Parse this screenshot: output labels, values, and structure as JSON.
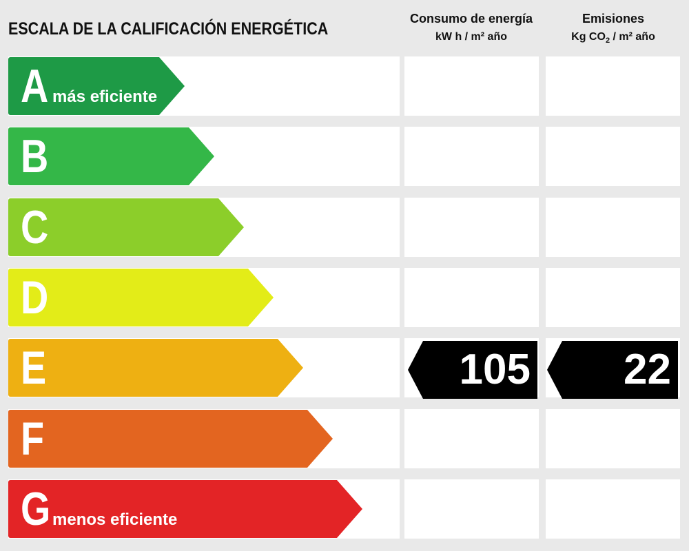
{
  "title": "ESCALA DE LA CALIFICACIÓN ENERGÉTICA",
  "columns": {
    "energy": {
      "title": "Consumo de energía",
      "unit": "kW h / m² año"
    },
    "emissions": {
      "title": "Emisiones",
      "unit_prefix": "Kg CO",
      "unit_sub": "2",
      "unit_suffix": " / m² año"
    }
  },
  "classes": [
    {
      "letter": "A",
      "label": "más eficiente",
      "color": "#1e9a46"
    },
    {
      "letter": "B",
      "label": "",
      "color": "#34b748"
    },
    {
      "letter": "C",
      "label": "",
      "color": "#8cce2a"
    },
    {
      "letter": "D",
      "label": "",
      "color": "#e3ec18"
    },
    {
      "letter": "E",
      "label": "",
      "color": "#eeb012"
    },
    {
      "letter": "F",
      "label": "",
      "color": "#e36520"
    },
    {
      "letter": "G",
      "label": "menos eficiente",
      "color": "#e32426"
    }
  ],
  "rating": {
    "class": "E",
    "energy_value": "105",
    "emissions_value": "22"
  }
}
